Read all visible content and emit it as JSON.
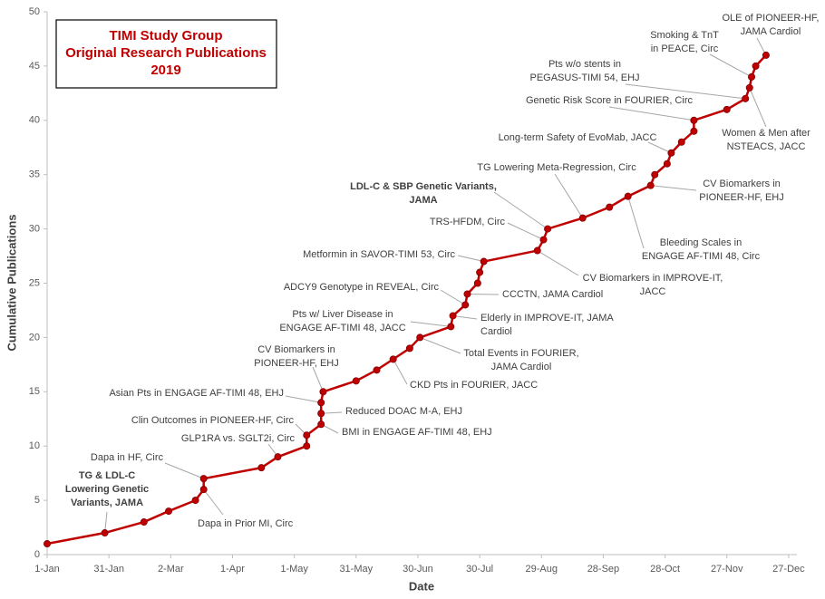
{
  "chart_data": {
    "type": "line",
    "title": [
      "TIMI Study Group",
      "Original Research Publications",
      "2019"
    ],
    "xlabel": "Date",
    "ylabel": "Cumulative Publications",
    "color": "#c00000",
    "x": [
      1,
      29,
      48,
      60,
      73,
      77,
      77,
      105,
      113,
      127,
      127,
      134,
      134,
      134,
      135,
      151,
      161,
      169,
      177,
      182,
      197,
      198,
      204,
      205,
      210,
      211,
      213,
      239,
      242,
      244,
      261,
      274,
      283,
      294,
      296,
      302,
      304,
      309,
      315,
      315,
      331,
      340,
      342,
      343,
      345,
      350
    ],
    "values": [
      1,
      2,
      3,
      4,
      5,
      6,
      7,
      8,
      9,
      10,
      11,
      12,
      13,
      14,
      15,
      16,
      17,
      18,
      19,
      20,
      21,
      22,
      23,
      24,
      25,
      26,
      27,
      28,
      29,
      30,
      31,
      32,
      33,
      34,
      35,
      36,
      37,
      38,
      39,
      40,
      41,
      42,
      43,
      44,
      45,
      46
    ],
    "xlim": [
      1,
      365
    ],
    "ylim": [
      0,
      50
    ],
    "xticks": [
      {
        "value": 1,
        "label": "1-Jan"
      },
      {
        "value": 31,
        "label": "31-Jan"
      },
      {
        "value": 61,
        "label": "2-Mar"
      },
      {
        "value": 91,
        "label": "1-Apr"
      },
      {
        "value": 121,
        "label": "1-May"
      },
      {
        "value": 151,
        "label": "31-May"
      },
      {
        "value": 181,
        "label": "30-Jun"
      },
      {
        "value": 211,
        "label": "30-Jul"
      },
      {
        "value": 241,
        "label": "29-Aug"
      },
      {
        "value": 271,
        "label": "28-Sep"
      },
      {
        "value": 301,
        "label": "28-Oct"
      },
      {
        "value": 331,
        "label": "27-Nov"
      },
      {
        "value": 361,
        "label": "27-Dec"
      }
    ],
    "yticks": [
      0,
      5,
      10,
      15,
      20,
      25,
      30,
      35,
      40,
      45,
      50
    ],
    "annotations": [
      {
        "text": [
          "TG & LDL-C",
          "Lowering Genetic",
          "Variants, JAMA"
        ],
        "bold": true
      },
      {
        "text": [
          "Dapa in HF, Circ"
        ]
      },
      {
        "text": [
          "Dapa in Prior MI, Circ"
        ]
      },
      {
        "text": [
          "GLP1RA vs. SGLT2i, Circ"
        ]
      },
      {
        "text": [
          "Clin Outcomes in PIONEER-HF, Circ"
        ]
      },
      {
        "text": [
          "BMI in ENGAGE AF-TIMI 48, EHJ"
        ]
      },
      {
        "text": [
          "Reduced DOAC M-A, EHJ"
        ]
      },
      {
        "text": [
          "Asian Pts in ENGAGE AF-TIMI 48, EHJ"
        ]
      },
      {
        "text": [
          "CV Biomarkers in",
          "PIONEER-HF, EHJ"
        ]
      },
      {
        "text": [
          "CKD Pts in FOURIER, JACC"
        ]
      },
      {
        "text": [
          "Total Events in FOURIER,",
          "JAMA Cardiol"
        ]
      },
      {
        "text": [
          "Pts w/ Liver Disease in",
          "ENGAGE AF-TIMI 48, JACC"
        ]
      },
      {
        "text": [
          "Elderly in IMPROVE-IT, JAMA",
          "Cardiol"
        ]
      },
      {
        "text": [
          "ADCY9 Genotype in REVEAL, Circ"
        ]
      },
      {
        "text": [
          "CCCTN, JAMA Cardiol"
        ]
      },
      {
        "text": [
          "Metformin in SAVOR-TIMI 53, Circ"
        ]
      },
      {
        "text": [
          "LDL-C & SBP Genetic Variants,",
          "JAMA"
        ],
        "bold": true
      },
      {
        "text": [
          "TRS-HFDM, Circ"
        ]
      },
      {
        "text": [
          "CV Biomarkers in IMPROVE-IT,",
          "JACC"
        ]
      },
      {
        "text": [
          "TG Lowering Meta-Regression, Circ"
        ]
      },
      {
        "text": [
          "Bleeding Scales in",
          "ENGAGE AF-TIMI 48, Circ"
        ]
      },
      {
        "text": [
          "CV Biomarkers in",
          "PIONEER-HF, EHJ"
        ]
      },
      {
        "text": [
          "Long-term Safety of EvoMab, JACC"
        ]
      },
      {
        "text": [
          "Genetic Risk Score in FOURIER, Circ"
        ]
      },
      {
        "text": [
          "Pts w/o stents in",
          "PEGASUS-TIMI 54, EHJ"
        ]
      },
      {
        "text": [
          "Smoking & TnT",
          "in PEACE, Circ"
        ]
      },
      {
        "text": [
          "OLE of PIONEER-HF,",
          "JAMA Cardiol"
        ]
      },
      {
        "text": [
          "Women & Men after",
          "NSTEACS, JACC"
        ]
      }
    ]
  }
}
